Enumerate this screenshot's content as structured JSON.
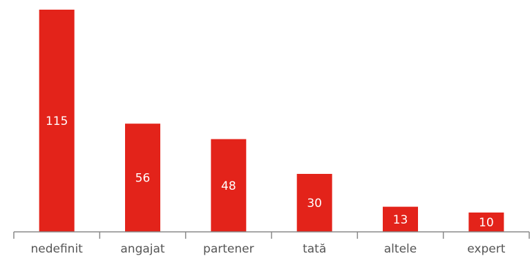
{
  "chart_data": {
    "type": "bar",
    "categories": [
      "nedefinit",
      "angajat",
      "partener",
      "tată",
      "altele",
      "expert"
    ],
    "values": [
      115,
      56,
      48,
      30,
      13,
      10
    ],
    "title": "",
    "xlabel": "",
    "ylabel": "",
    "ylim": [
      0,
      115
    ],
    "grid": false,
    "legend": "none",
    "data_labels": "inside-center",
    "bar_color": "#e3231a",
    "label_color": "#ffffff",
    "axis_color": "#888888"
  }
}
